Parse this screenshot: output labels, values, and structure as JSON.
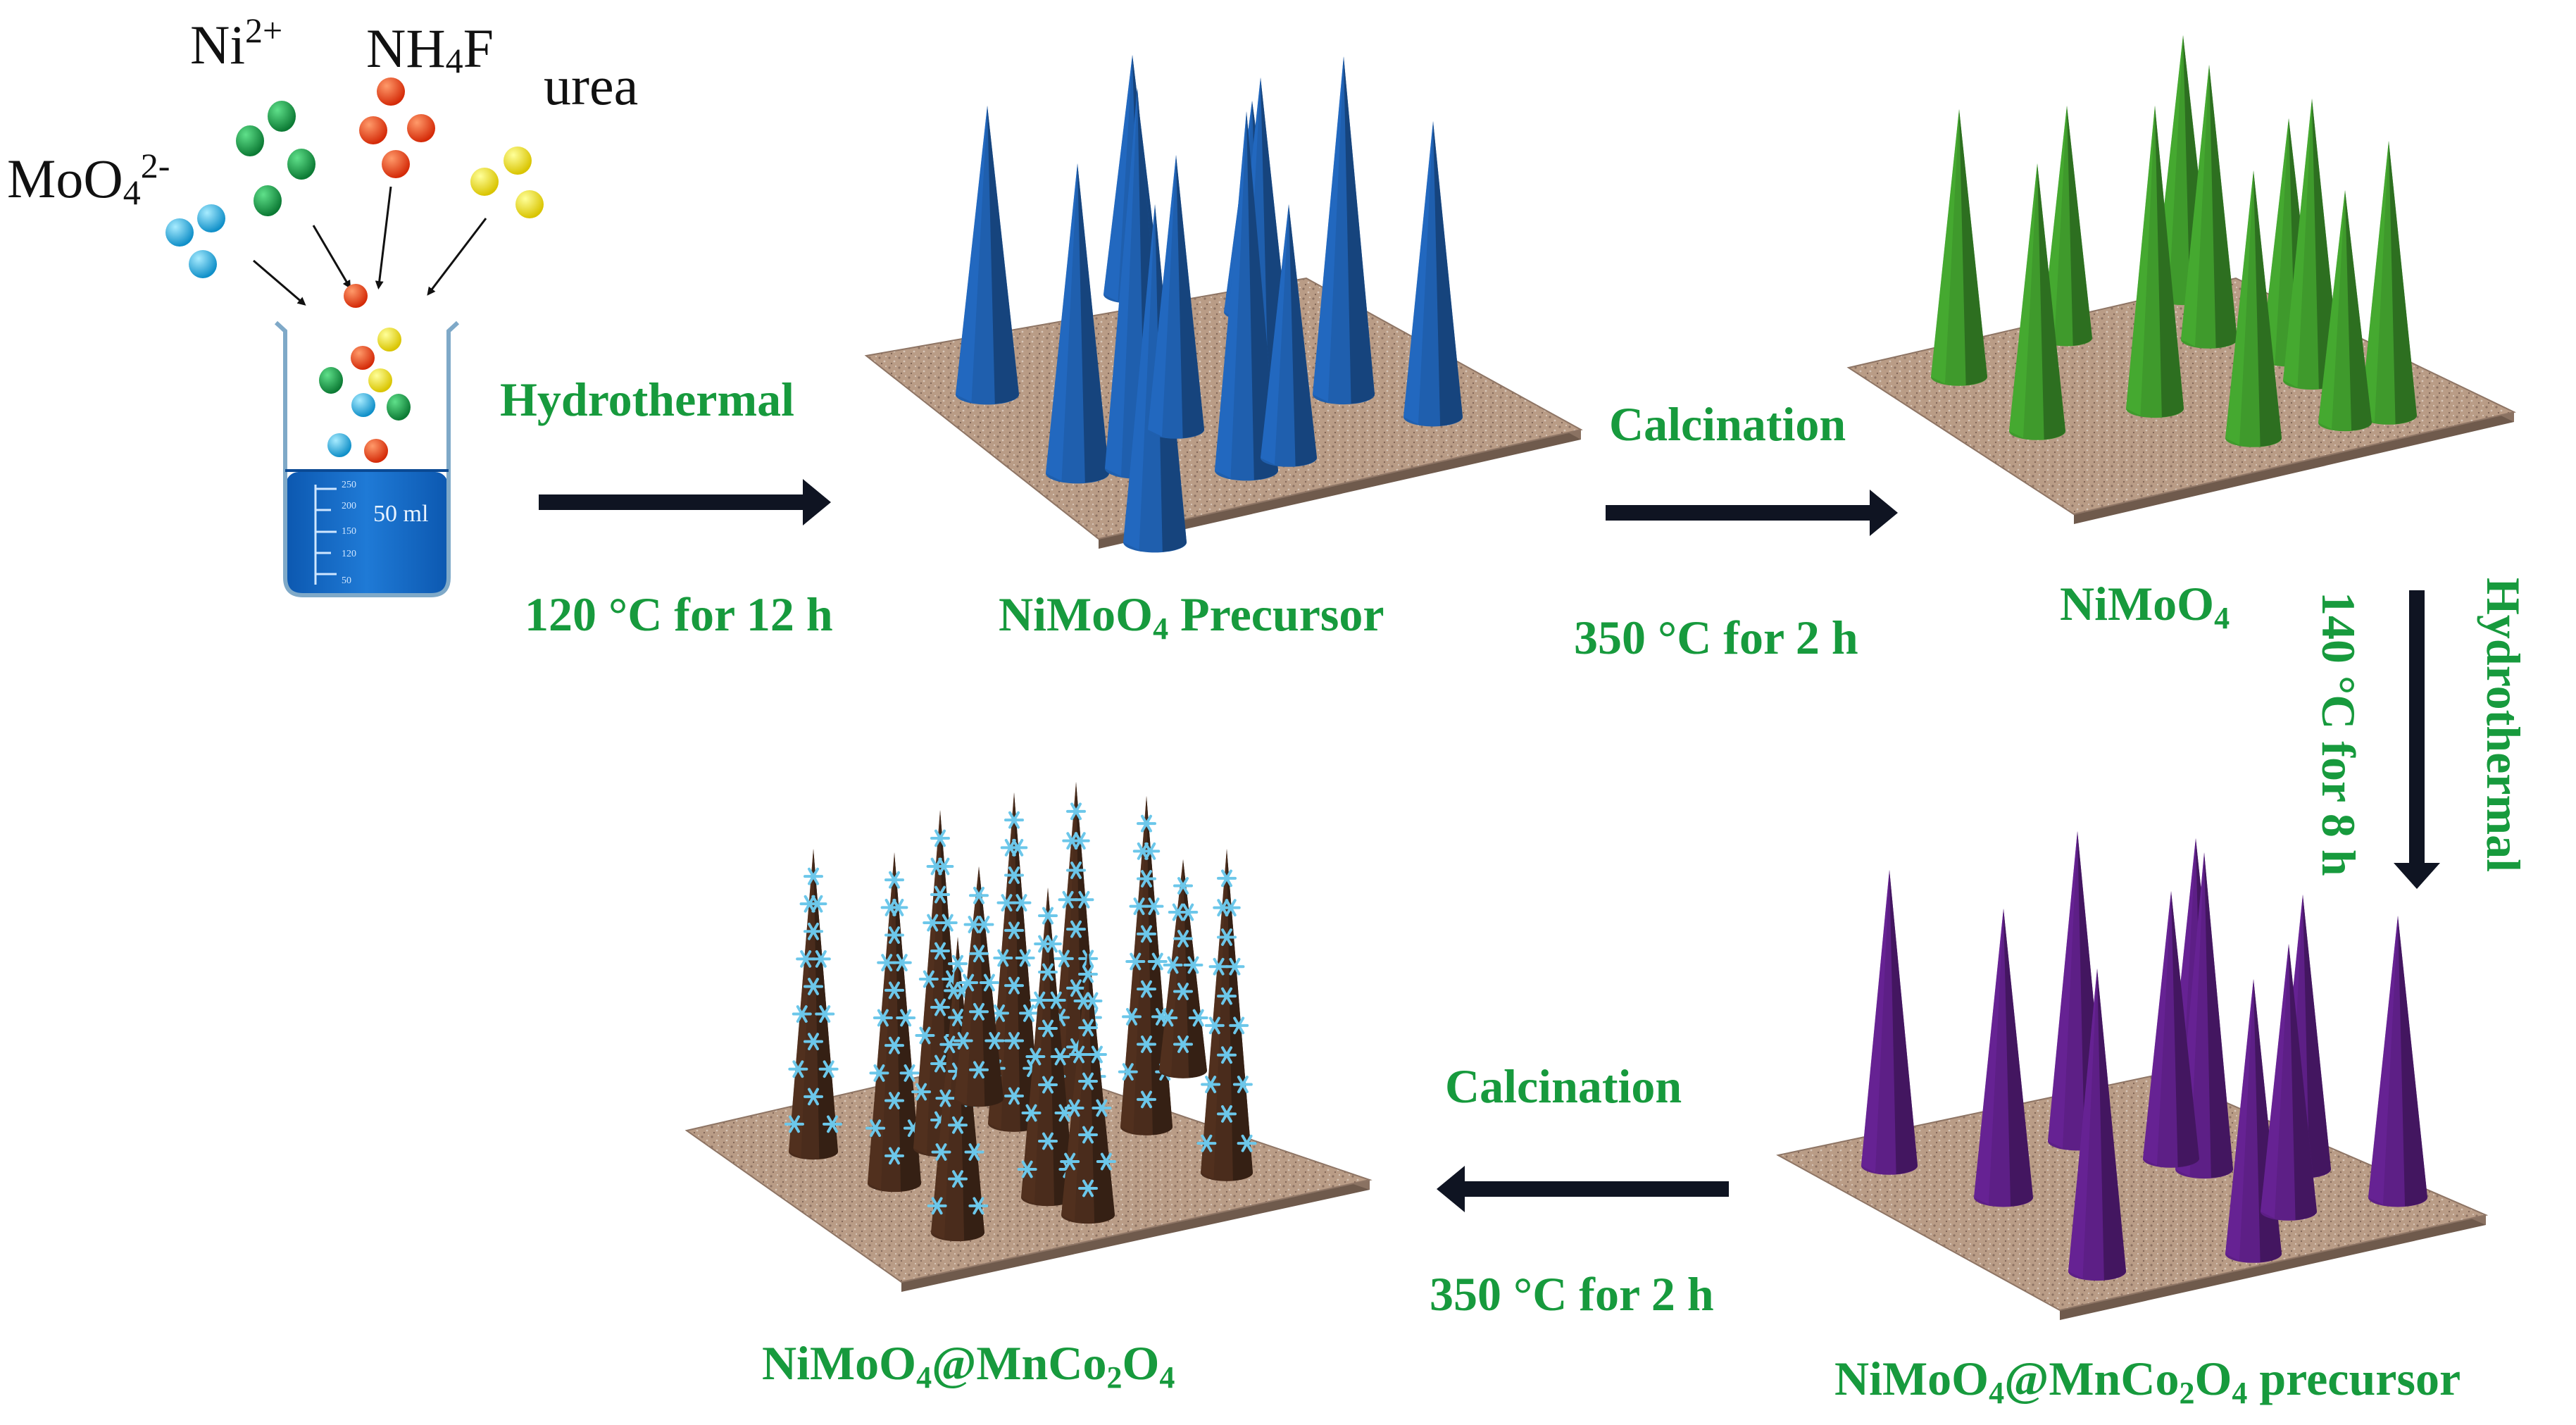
{
  "reagents": {
    "moo4": "MoO",
    "moo4_sub": "4",
    "moo4_sup": "2-",
    "ni": "Ni",
    "ni_sup": "2+",
    "nh4f_a": "NH",
    "nh4f_sub": "4",
    "nh4f_b": "F",
    "urea": "urea"
  },
  "beaker": {
    "volume_label": "50 ml",
    "tick_labels": [
      "250",
      "200",
      "150",
      "120",
      "50"
    ]
  },
  "steps": {
    "hydrothermal_1": "Hydrothermal",
    "cond_1": "120 °C for 12 h",
    "calcination_1": "Calcination",
    "cond_2": "350 °C for 2 h",
    "hydrothermal_2": "Hydrothermal",
    "cond_3": "140 °C for 8 h",
    "calcination_2": "Calcination",
    "cond_4": "350 °C for 2 h"
  },
  "products": {
    "precursor_a": "NiMoO",
    "precursor_sub": "4",
    "precursor_b": " Precursor",
    "nimoo4_a": "NiMoO",
    "nimoo4_sub": "4",
    "core_shell_precursor": [
      "NiMoO",
      "4",
      "@MnCo",
      "2",
      "O",
      "4",
      " precursor"
    ],
    "core_shell": [
      "NiMoO",
      "4",
      "@MnCo",
      "2",
      "O",
      "4"
    ]
  },
  "colors": {
    "label_green": "#179a3d",
    "blue_cone": "#1f5fae",
    "green_cone": "#3f9a2c",
    "purple_cone": "#5d1f86",
    "brown_cone": "#4a2c1c",
    "flower": "#6cc7ea",
    "substrate": "#b99c86",
    "arrow": "#0f1422"
  }
}
